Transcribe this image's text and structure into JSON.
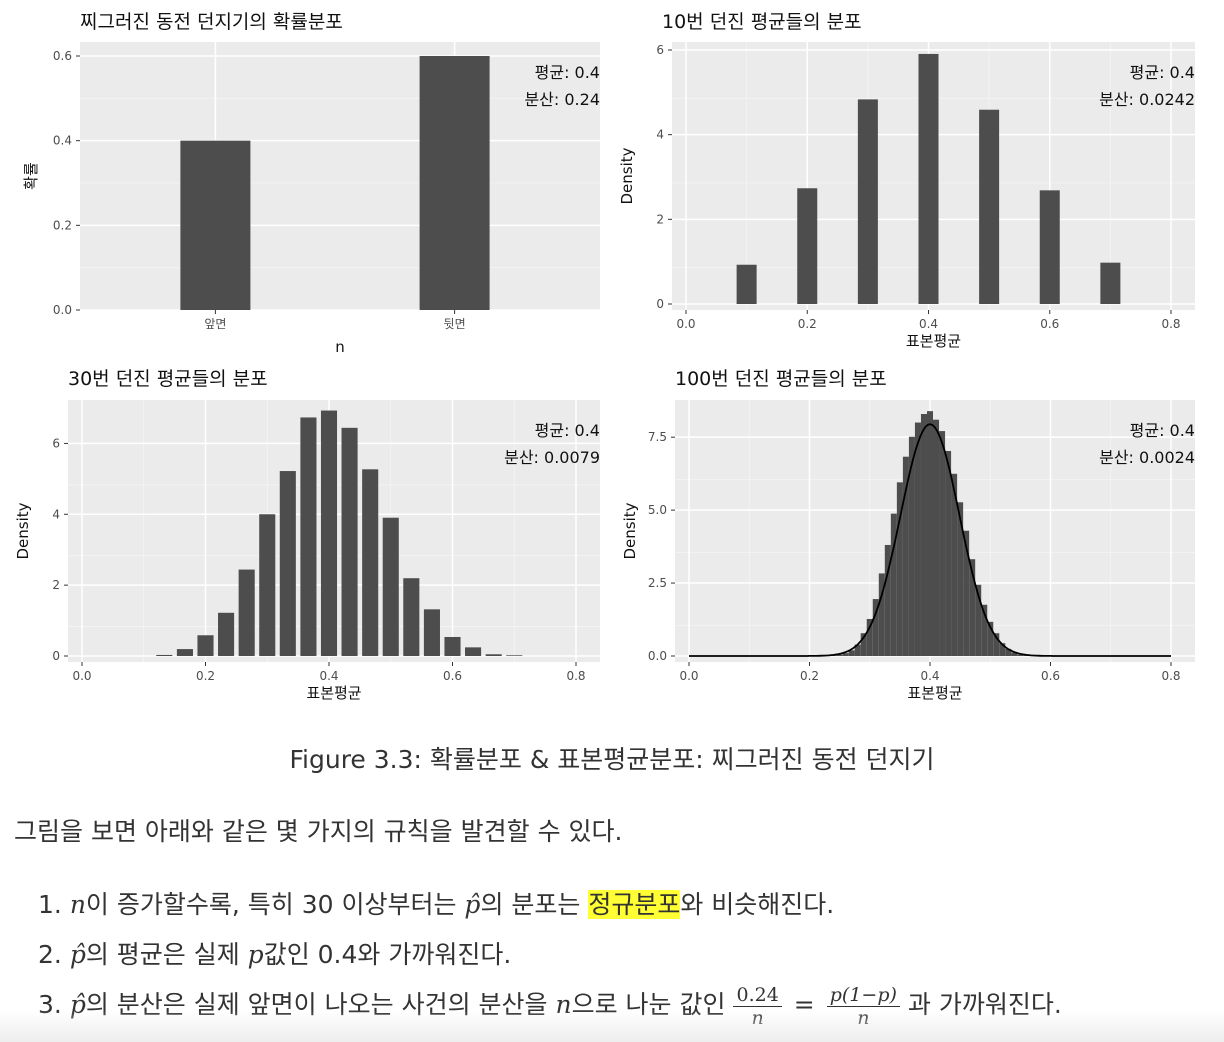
{
  "chart_data": [
    {
      "type": "bar",
      "title": "찌그러진 동전 던지기의 확률분포",
      "xlabel": "n",
      "ylabel": "확률",
      "categories": [
        "앞면",
        "뒷면"
      ],
      "values": [
        0.4,
        0.6
      ],
      "ylim": [
        0,
        0.6
      ],
      "yticks": [
        "0.0",
        "0.2",
        "0.4",
        "0.6"
      ],
      "annotations": [
        "평균: 0.4",
        "분산: 0.24"
      ],
      "grid": true
    },
    {
      "type": "bar",
      "title": "10번 던진 평균들의 분포",
      "xlabel": "표본평균",
      "ylabel": "Density",
      "x": [
        0.1,
        0.2,
        0.3,
        0.4,
        0.5,
        0.6,
        0.7
      ],
      "values": [
        0.95,
        2.8,
        4.95,
        6.05,
        4.7,
        2.75,
        1.0
      ],
      "xlim": [
        0,
        0.8
      ],
      "ylim": [
        0,
        6
      ],
      "xticks": [
        "0.0",
        "0.2",
        "0.4",
        "0.6",
        "0.8"
      ],
      "yticks": [
        "0",
        "2",
        "4",
        "6"
      ],
      "annotations": [
        "평균: 0.4",
        "분산: 0.0242"
      ],
      "grid": true
    },
    {
      "type": "bar",
      "title": "30번 던진 평균들의 분포",
      "xlabel": "표본평균",
      "ylabel": "Density",
      "x": [
        0.1333,
        0.1667,
        0.2,
        0.2333,
        0.2667,
        0.3,
        0.3333,
        0.3667,
        0.4,
        0.4333,
        0.4667,
        0.5,
        0.5333,
        0.5667,
        0.6,
        0.6333,
        0.6667,
        0.7
      ],
      "values": [
        0.03,
        0.2,
        0.6,
        1.25,
        2.5,
        4.1,
        5.35,
        6.9,
        7.1,
        6.6,
        5.4,
        4.0,
        2.25,
        1.35,
        0.55,
        0.25,
        0.05,
        0.02
      ],
      "xlim": [
        0,
        0.8
      ],
      "ylim": [
        0,
        7
      ],
      "xticks": [
        "0.0",
        "0.2",
        "0.4",
        "0.6",
        "0.8"
      ],
      "yticks": [
        "0",
        "2",
        "4",
        "6"
      ],
      "annotations": [
        "평균: 0.4",
        "분산: 0.0079"
      ],
      "grid": true
    },
    {
      "type": "bar",
      "title": "100번 던진 평균들의 분포",
      "xlabel": "표본평균",
      "ylabel": "Density",
      "x": [
        0.24,
        0.25,
        0.26,
        0.27,
        0.28,
        0.29,
        0.3,
        0.31,
        0.32,
        0.33,
        0.34,
        0.35,
        0.36,
        0.37,
        0.38,
        0.39,
        0.4,
        0.41,
        0.42,
        0.43,
        0.44,
        0.45,
        0.46,
        0.47,
        0.48,
        0.49,
        0.5,
        0.51,
        0.52,
        0.53,
        0.54,
        0.55,
        0.56
      ],
      "values": [
        0.02,
        0.05,
        0.1,
        0.2,
        0.4,
        0.8,
        1.3,
        2.0,
        2.9,
        3.9,
        5.0,
        6.1,
        7.0,
        7.7,
        8.2,
        8.5,
        8.6,
        8.3,
        7.9,
        7.2,
        6.4,
        5.4,
        4.4,
        3.4,
        2.5,
        1.8,
        1.2,
        0.8,
        0.45,
        0.25,
        0.12,
        0.05,
        0.02
      ],
      "curve": {
        "type": "normal",
        "mean": 0.4,
        "variance": 0.0024
      },
      "xlim": [
        0,
        0.8
      ],
      "ylim": [
        0,
        8.5
      ],
      "xticks": [
        "0.0",
        "0.2",
        "0.4",
        "0.6",
        "0.8"
      ],
      "yticks": [
        "0.0",
        "2.5",
        "5.0",
        "7.5"
      ],
      "annotations": [
        "평균: 0.4",
        "분산: 0.0024"
      ],
      "grid": true
    }
  ],
  "caption": "Figure 3.3: 확률분포 & 표본평균분포: 찌그러진 동전 던지기",
  "intro": "그림을 보면 아래와 같은 몇 가지의 규칙을 발견할 수 있다.",
  "rules": {
    "r1": {
      "num": "1.",
      "var_n": "n",
      "a": "이 증가할수록, 특히 30 이상부터는 ",
      "phat": "p̂",
      "b": "의 분포는 ",
      "highlight": "정규분포",
      "c": "와 비슷해진다."
    },
    "r2": {
      "num": "2.",
      "phat": "p̂",
      "a": "의 평균은 실제 ",
      "p": "p",
      "b": "값인 0.4와 가까워진다."
    },
    "r3": {
      "num": "3.",
      "phat": "p̂",
      "a": "의 분산은 실제 앞면이 나오는 사건의 분산을 ",
      "var_n": "n",
      "b": "으로 나눈 값인",
      "frac1_num": "0.24",
      "frac1_den": "n",
      "eq": "=",
      "frac2_num": "p(1−p)",
      "frac2_den": "n",
      "c": "과 가까워진다."
    }
  }
}
